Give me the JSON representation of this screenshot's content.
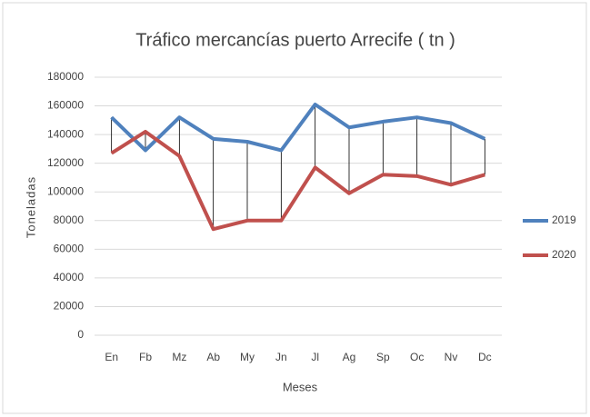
{
  "chart_data": {
    "type": "line",
    "title": "Tráfico mercancías puerto Arrecife ( tn )",
    "x_label": "Meses",
    "y_label": "Toneladas",
    "categories": [
      "En",
      "Fb",
      "Mz",
      "Ab",
      "My",
      "Jn",
      "Jl",
      "Ag",
      "Sp",
      "Oc",
      "Nv",
      "Dc"
    ],
    "series": [
      {
        "name": "2019",
        "color": "#4f81bd",
        "values": [
          152000,
          129000,
          152000,
          137000,
          135000,
          129000,
          161000,
          145000,
          149000,
          152000,
          148000,
          137000
        ]
      },
      {
        "name": "2020",
        "color": "#c0504d",
        "values": [
          127000,
          142000,
          125000,
          74000,
          80000,
          80000,
          117000,
          99000,
          112000,
          111000,
          105000,
          112000
        ]
      }
    ],
    "ylim": [
      0,
      180000
    ],
    "yticks": [
      0,
      20000,
      40000,
      60000,
      80000,
      100000,
      120000,
      140000,
      160000,
      180000
    ],
    "grid": true,
    "drop_lines": true,
    "legend": "right"
  }
}
